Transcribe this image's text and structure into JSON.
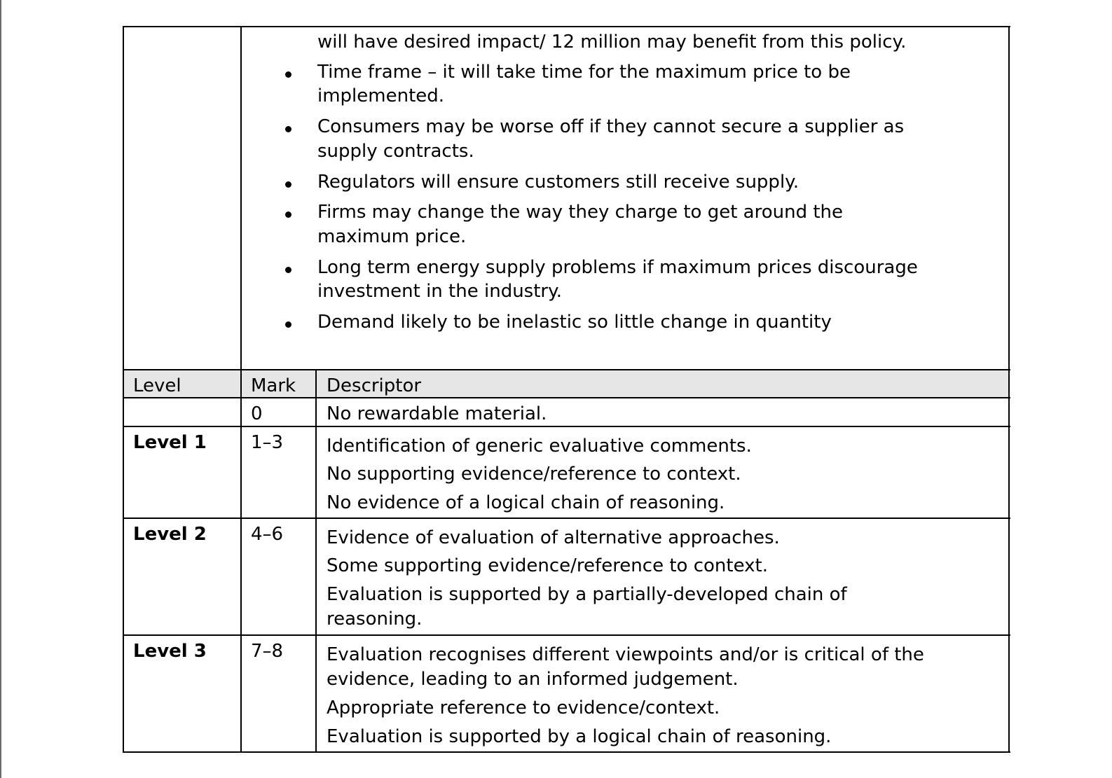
{
  "bullets_continued": "will have desired impact/ 12 million may benefit from this policy.",
  "bullets": [
    [
      "Time frame – it will take time for the maximum price to be",
      "implemented."
    ],
    [
      "Consumers may be worse off if they cannot secure a supplier as",
      "supply contracts."
    ],
    [
      "Regulators will ensure customers still receive supply."
    ],
    [
      "Firms may change the way they charge to get around the",
      "maximum price."
    ],
    [
      "Long term energy supply problems if maximum prices discourage",
      "investment in the industry."
    ],
    [
      "Demand likely to be inelastic so little change in quantity"
    ]
  ],
  "table": {
    "headers": {
      "level": "Level",
      "mark": "Mark",
      "descriptor": "Descriptor"
    },
    "rows": [
      {
        "level": "",
        "mark": "0",
        "descriptor": [
          [
            "No rewardable material."
          ]
        ]
      },
      {
        "level": "Level 1",
        "mark": "1–3",
        "descriptor": [
          [
            "Identification of generic evaluative comments."
          ],
          [
            "No supporting evidence/reference to context."
          ],
          [
            "No evidence of a logical chain of reasoning."
          ]
        ]
      },
      {
        "level": "Level 2",
        "mark": "4–6",
        "descriptor": [
          [
            "Evidence of evaluation of alternative approaches."
          ],
          [
            "Some supporting evidence/reference to context."
          ],
          [
            "Evaluation is supported by a partially-developed chain of",
            "reasoning."
          ]
        ]
      },
      {
        "level": "Level 3",
        "mark": "7–8",
        "descriptor": [
          [
            "Evaluation recognises different viewpoints and/or is critical of the",
            "evidence, leading to an informed judgement."
          ],
          [
            "Appropriate reference to evidence/context."
          ],
          [
            "Evaluation is supported by a logical chain of reasoning."
          ]
        ]
      }
    ]
  }
}
